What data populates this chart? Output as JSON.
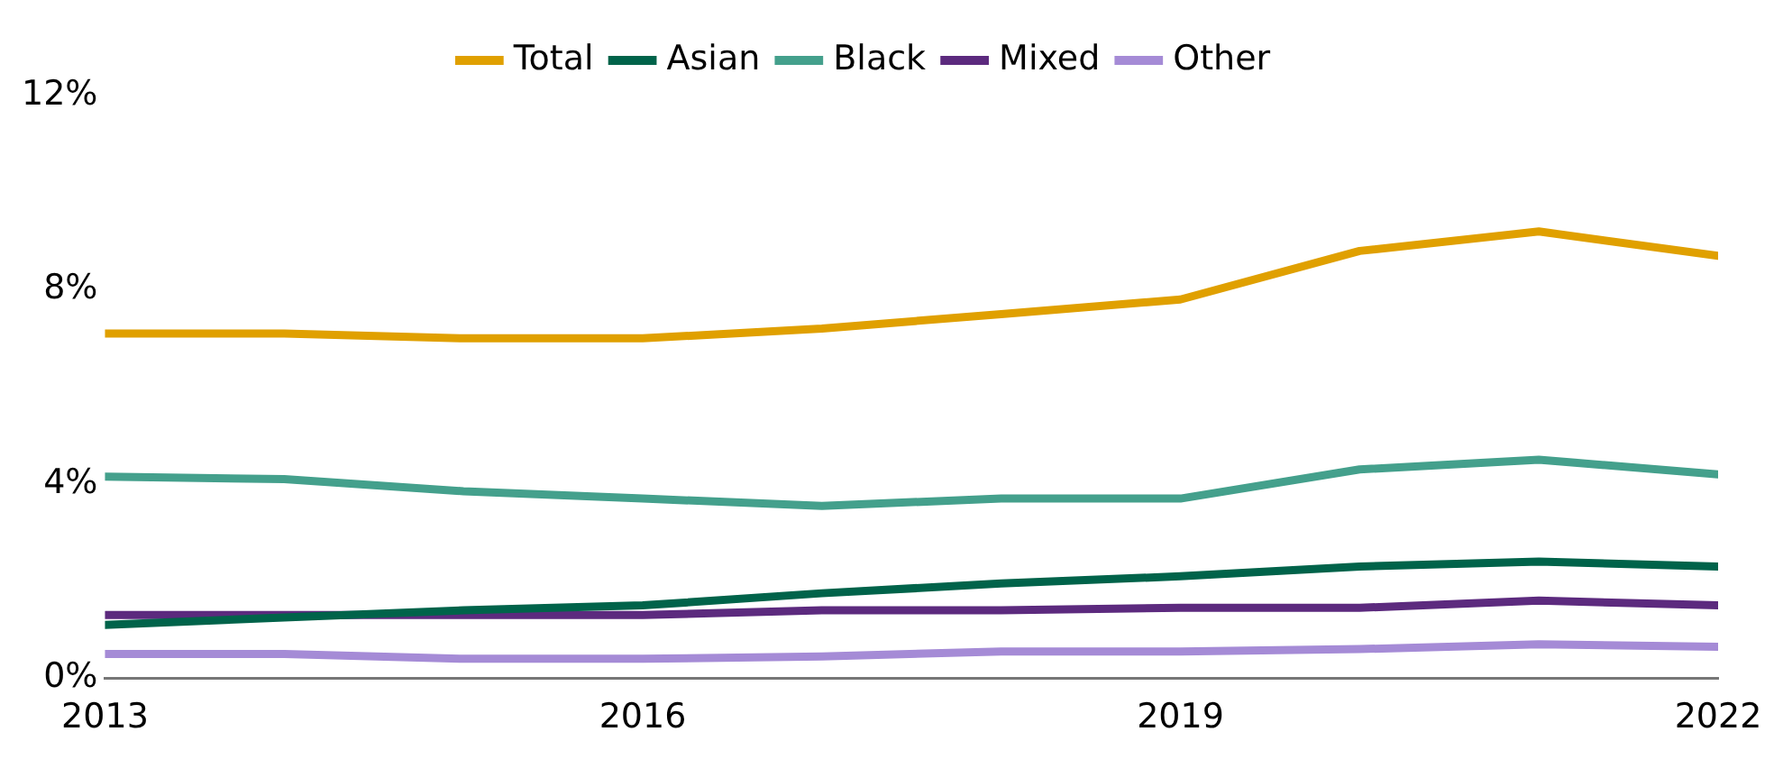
{
  "chart_data": {
    "type": "line",
    "x": [
      2013,
      2014,
      2015,
      2016,
      2017,
      2018,
      2019,
      2020,
      2021,
      2022
    ],
    "xlim": [
      2013,
      2022
    ],
    "xticks": [
      2013,
      2016,
      2019,
      2022
    ],
    "ylim": [
      0,
      12
    ],
    "yticks": [
      {
        "value": 0,
        "label": "0%"
      },
      {
        "value": 4,
        "label": "4%"
      },
      {
        "value": 8,
        "label": "8%"
      },
      {
        "value": 12,
        "label": "12%"
      }
    ],
    "grid": false,
    "legend": "top",
    "marker": "none",
    "line_style": "solid",
    "series": [
      {
        "name": "Total",
        "color": "#e0a000",
        "values": [
          7.1,
          7.1,
          7.0,
          7.0,
          7.2,
          7.5,
          7.8,
          8.8,
          9.2,
          8.7
        ]
      },
      {
        "name": "Asian",
        "color": "#00634a",
        "values": [
          1.1,
          1.25,
          1.4,
          1.5,
          1.75,
          1.95,
          2.1,
          2.3,
          2.4,
          2.3
        ]
      },
      {
        "name": "Black",
        "color": "#44a08c",
        "values": [
          4.15,
          4.1,
          3.85,
          3.7,
          3.55,
          3.7,
          3.7,
          4.3,
          4.5,
          4.2
        ]
      },
      {
        "name": "Mixed",
        "color": "#5c2a7e",
        "values": [
          1.3,
          1.3,
          1.3,
          1.3,
          1.4,
          1.4,
          1.45,
          1.45,
          1.6,
          1.5
        ]
      },
      {
        "name": "Other",
        "color": "#a58bd6",
        "values": [
          0.5,
          0.5,
          0.4,
          0.4,
          0.45,
          0.55,
          0.55,
          0.6,
          0.7,
          0.65
        ]
      }
    ]
  }
}
